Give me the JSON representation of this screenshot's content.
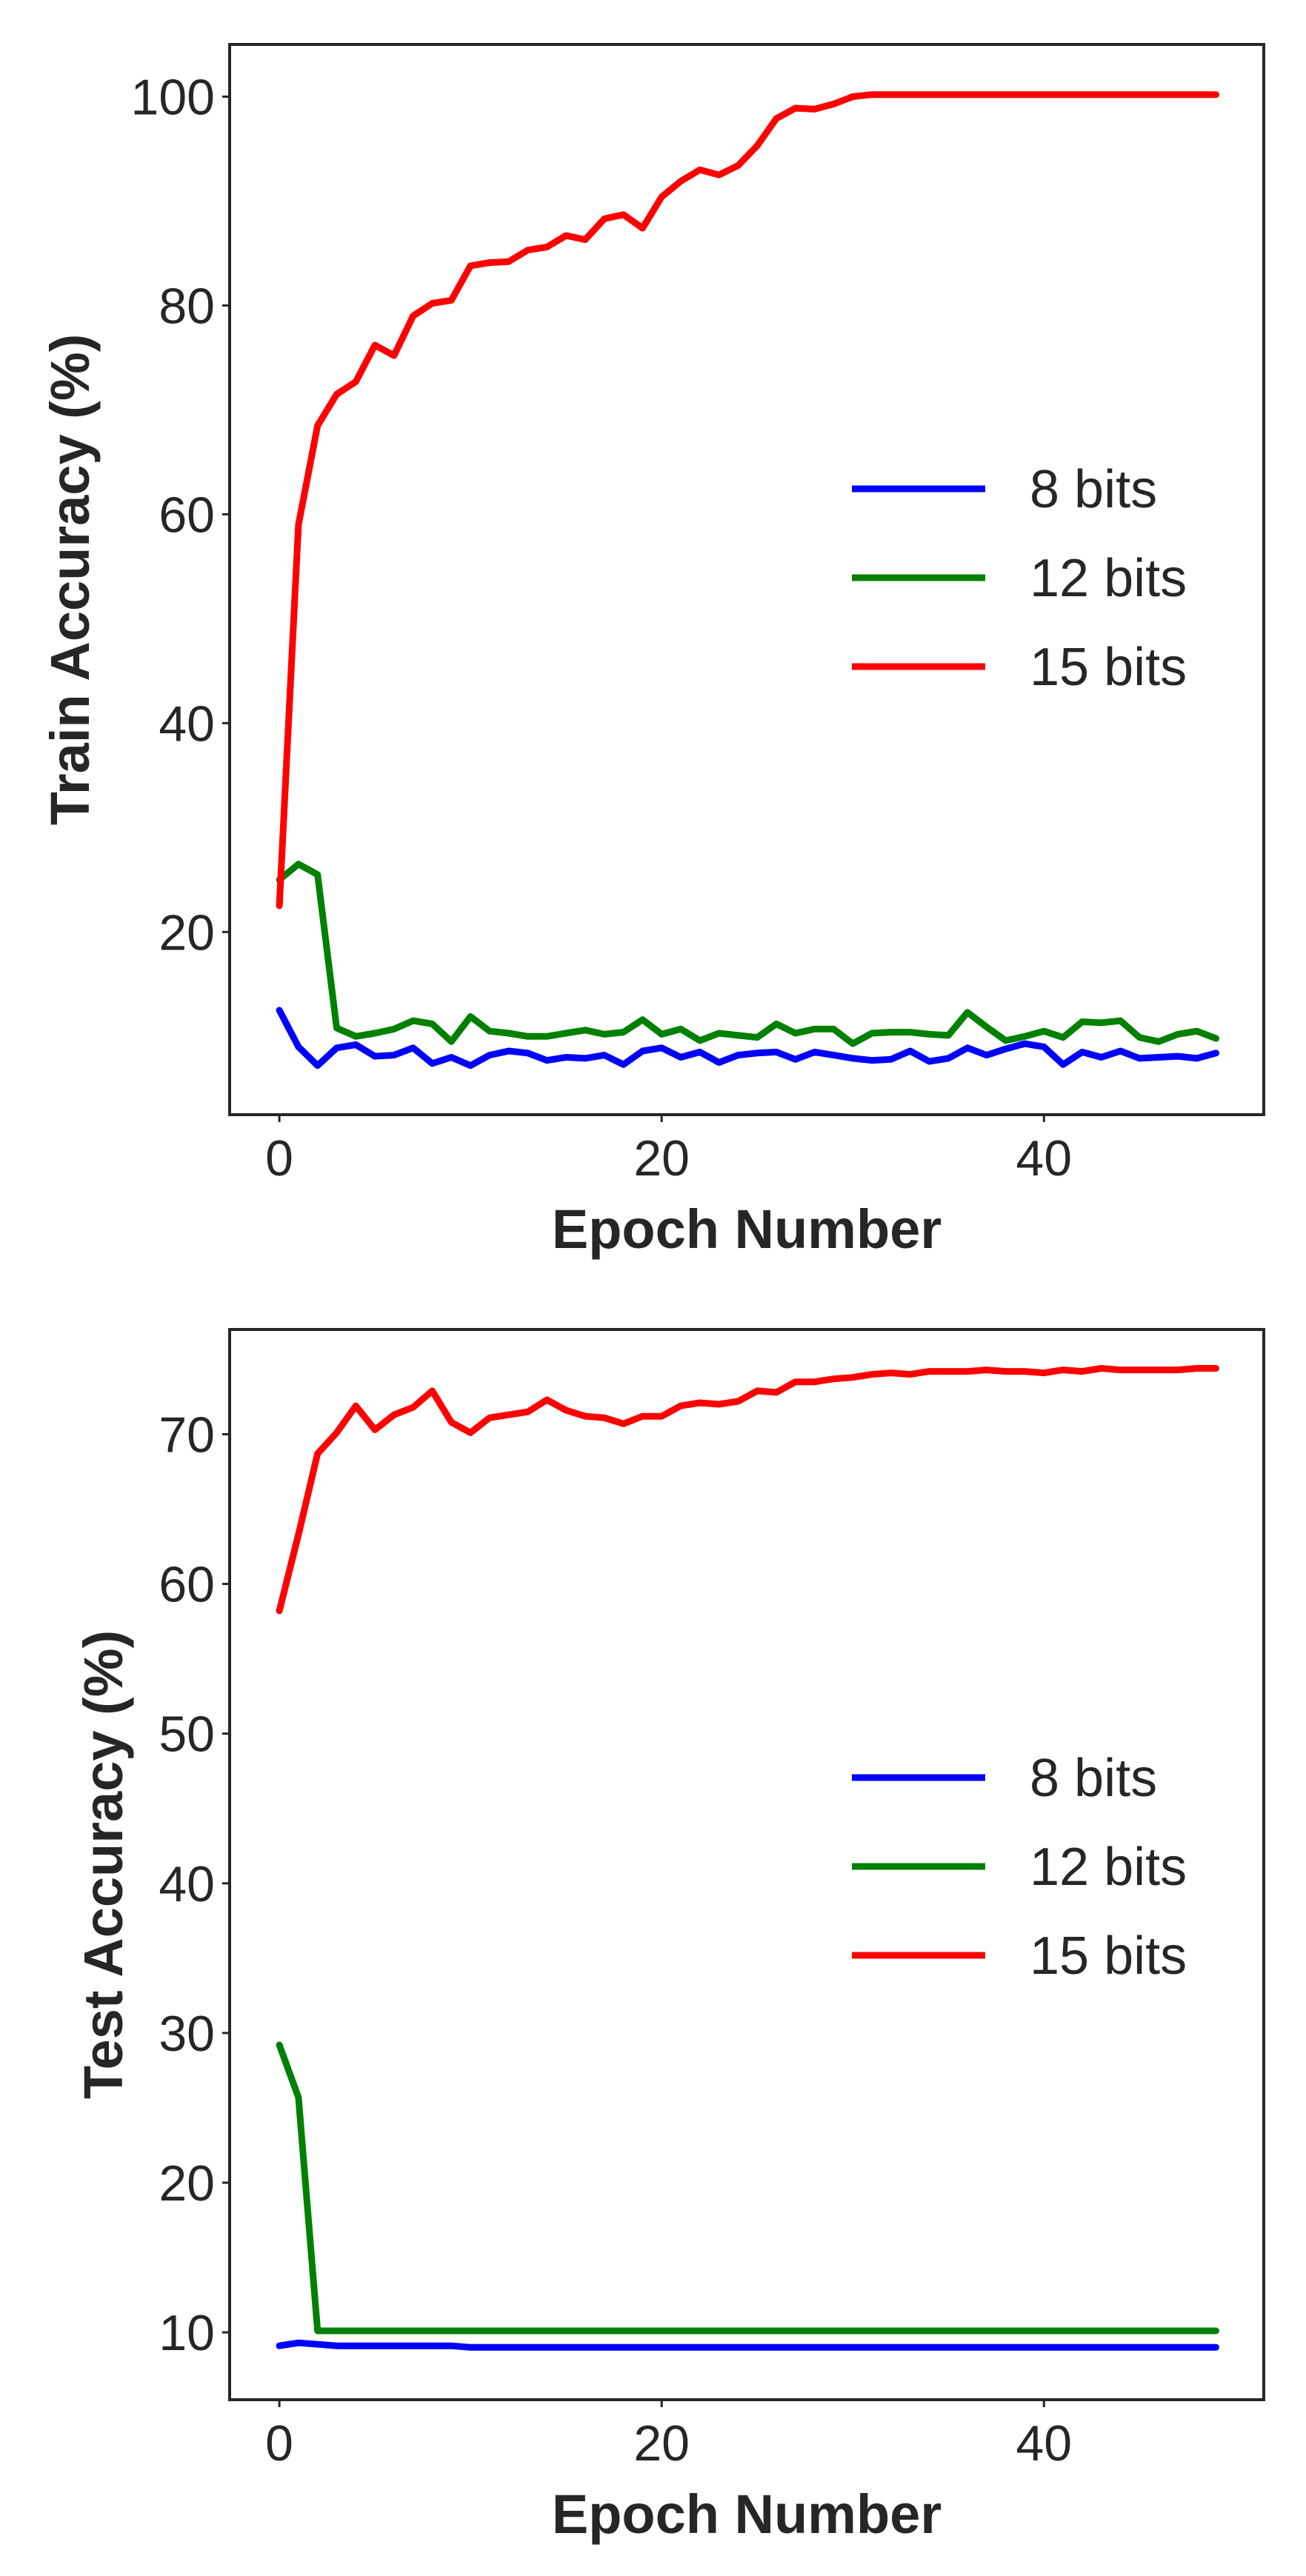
{
  "colors": {
    "8 bits": "#0000ff",
    "12 bits": "#008000",
    "15 bits": "#ff0000"
  },
  "chart_data": [
    {
      "type": "line",
      "xlabel": "Epoch Number",
      "ylabel": "Train Accuracy (%)",
      "xlim": [
        -2.6,
        51.5
      ],
      "ylim": [
        2.5,
        105
      ],
      "xticks": [
        0,
        20,
        40
      ],
      "yticks": [
        20,
        40,
        60,
        80,
        100
      ],
      "grid": false,
      "legend": "center-right",
      "x": [
        0,
        1,
        2,
        3,
        4,
        5,
        6,
        7,
        8,
        9,
        10,
        11,
        12,
        13,
        14,
        15,
        16,
        17,
        18,
        19,
        20,
        21,
        22,
        23,
        24,
        25,
        26,
        27,
        28,
        29,
        30,
        31,
        32,
        33,
        34,
        35,
        36,
        37,
        38,
        39,
        40,
        41,
        42,
        43,
        44,
        45,
        46,
        47,
        48,
        49
      ],
      "series": [
        {
          "name": "8 bits",
          "values": [
            12.5,
            9,
            7.2,
            8.9,
            9.2,
            8.1,
            8.2,
            8.9,
            7.4,
            8,
            7.2,
            8.2,
            8.6,
            8.4,
            7.7,
            8,
            7.9,
            8.2,
            7.3,
            8.6,
            8.9,
            8,
            8.5,
            7.5,
            8.2,
            8.4,
            8.5,
            7.8,
            8.5,
            8.2,
            7.9,
            7.7,
            7.8,
            8.6,
            7.6,
            7.9,
            8.9,
            8.2,
            8.8,
            9.3,
            9,
            7.3,
            8.5,
            8,
            8.6,
            7.9,
            8,
            8.1,
            7.9,
            8.4
          ]
        },
        {
          "name": "12 bits",
          "values": [
            25,
            26.5,
            25.5,
            10.8,
            10,
            10.3,
            10.7,
            11.5,
            11.2,
            9.5,
            11.9,
            10.5,
            10.3,
            10,
            10,
            10.3,
            10.6,
            10.2,
            10.4,
            11.6,
            10.2,
            10.7,
            9.6,
            10.3,
            10.1,
            9.9,
            11.2,
            10.3,
            10.7,
            10.7,
            9.3,
            10.3,
            10.4,
            10.4,
            10.2,
            10.1,
            12.3,
            10.9,
            9.6,
            10,
            10.5,
            9.9,
            11.4,
            11.3,
            11.5,
            9.9,
            9.5,
            10.2,
            10.5,
            9.8
          ]
        },
        {
          "name": "15 bits",
          "values": [
            22.5,
            59,
            68.5,
            71.5,
            72.7,
            76.2,
            75.2,
            79,
            80.2,
            80.5,
            83.8,
            84.1,
            84.2,
            85.3,
            85.6,
            86.7,
            86.3,
            88.3,
            88.7,
            87.4,
            90.4,
            91.9,
            93,
            92.5,
            93.4,
            95.3,
            97.9,
            98.9,
            98.8,
            99.3,
            100,
            100.2,
            100.2,
            100.2,
            100.2,
            100.2,
            100.2,
            100.2,
            100.2,
            100.2,
            100.2,
            100.2,
            100.2,
            100.2,
            100.2,
            100.2,
            100.2,
            100.2,
            100.2,
            100.2
          ]
        }
      ]
    },
    {
      "type": "line",
      "xlabel": "Epoch Number",
      "ylabel": "Test Accuracy (%)",
      "xlim": [
        -2.6,
        51.5
      ],
      "ylim": [
        5.5,
        77
      ],
      "xticks": [
        0,
        20,
        40
      ],
      "yticks": [
        10,
        20,
        30,
        40,
        50,
        60,
        70
      ],
      "grid": false,
      "legend": "center-right",
      "x": [
        0,
        1,
        2,
        3,
        4,
        5,
        6,
        7,
        8,
        9,
        10,
        11,
        12,
        13,
        14,
        15,
        16,
        17,
        18,
        19,
        20,
        21,
        22,
        23,
        24,
        25,
        26,
        27,
        28,
        29,
        30,
        31,
        32,
        33,
        34,
        35,
        36,
        37,
        38,
        39,
        40,
        41,
        42,
        43,
        44,
        45,
        46,
        47,
        48,
        49
      ],
      "series": [
        {
          "name": "8 bits",
          "values": [
            9.1,
            9.3,
            9.2,
            9.1,
            9.1,
            9.1,
            9.1,
            9.1,
            9.1,
            9.1,
            9,
            9,
            9,
            9,
            9,
            9,
            9,
            9,
            9,
            9,
            9,
            9,
            9,
            9,
            9,
            9,
            9,
            9,
            9,
            9,
            9,
            9,
            9,
            9,
            9,
            9,
            9,
            9,
            9,
            9,
            9,
            9,
            9,
            9,
            9,
            9,
            9,
            9,
            9,
            9
          ]
        },
        {
          "name": "12 bits",
          "values": [
            29.2,
            25.7,
            10.1,
            10.1,
            10.1,
            10.1,
            10.1,
            10.1,
            10.1,
            10.1,
            10.1,
            10.1,
            10.1,
            10.1,
            10.1,
            10.1,
            10.1,
            10.1,
            10.1,
            10.1,
            10.1,
            10.1,
            10.1,
            10.1,
            10.1,
            10.1,
            10.1,
            10.1,
            10.1,
            10.1,
            10.1,
            10.1,
            10.1,
            10.1,
            10.1,
            10.1,
            10.1,
            10.1,
            10.1,
            10.1,
            10.1,
            10.1,
            10.1,
            10.1,
            10.1,
            10.1,
            10.1,
            10.1,
            10.1,
            10.1
          ]
        },
        {
          "name": "15 bits",
          "values": [
            58.2,
            63.3,
            68.7,
            70.1,
            71.9,
            70.3,
            71.3,
            71.8,
            72.9,
            70.8,
            70.1,
            71.1,
            71.3,
            71.5,
            72.3,
            71.6,
            71.2,
            71.1,
            70.7,
            71.2,
            71.2,
            71.9,
            72.1,
            72,
            72.2,
            72.9,
            72.8,
            73.5,
            73.5,
            73.7,
            73.8,
            74,
            74.1,
            74,
            74.2,
            74.2,
            74.2,
            74.3,
            74.2,
            74.2,
            74.1,
            74.3,
            74.2,
            74.4,
            74.3,
            74.3,
            74.3,
            74.3,
            74.4,
            74.4
          ]
        }
      ]
    }
  ]
}
